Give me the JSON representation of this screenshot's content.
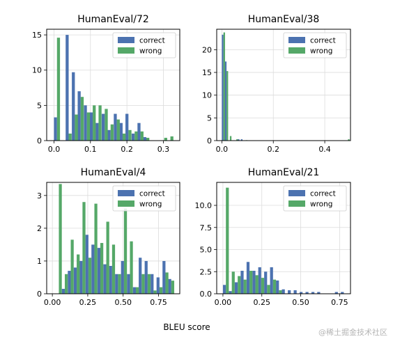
{
  "figure": {
    "xlabel": "BLEU score",
    "watermark": "@稀土掘金技术社区"
  },
  "chart_data": [
    {
      "type": "bar",
      "title": "HumanEval/72",
      "grid": true,
      "legend_position": "top-right",
      "xlim": [
        -0.02,
        0.345
      ],
      "ylim": [
        0,
        15.8
      ],
      "xticks": [
        0.0,
        0.1,
        0.2,
        0.3
      ],
      "xtick_labels": [
        "0.0",
        "0.1",
        "0.2",
        "0.3"
      ],
      "yticks": [
        0,
        5,
        10,
        15
      ],
      "ytick_labels": [
        "0",
        "5",
        "10",
        "15"
      ],
      "bin_width": 0.0165,
      "series": [
        {
          "name": "correct",
          "color": "#4c72b0",
          "x": [
            0.0,
            0.016,
            0.032,
            0.049,
            0.065,
            0.082,
            0.098,
            0.114,
            0.131,
            0.147,
            0.164,
            0.18,
            0.196,
            0.213,
            0.229,
            0.245,
            0.262,
            0.278,
            0.294,
            0.311,
            0.327
          ],
          "values": [
            3.3,
            0,
            15.0,
            9.7,
            7.0,
            5.0,
            4.0,
            2.5,
            3.8,
            1.5,
            3.8,
            2.5,
            3.8,
            1.0,
            2.5,
            0.5,
            0,
            0,
            0,
            0,
            0
          ]
        },
        {
          "name": "wrong",
          "color": "#55a868",
          "x": [
            0.0,
            0.016,
            0.032,
            0.049,
            0.065,
            0.082,
            0.098,
            0.114,
            0.131,
            0.147,
            0.164,
            0.18,
            0.196,
            0.213,
            0.229,
            0.245,
            0.262,
            0.278,
            0.294,
            0.311,
            0.327
          ],
          "values": [
            14.6,
            0,
            1.0,
            3.7,
            6.2,
            4.0,
            5.0,
            5.0,
            4.5,
            2.3,
            3.0,
            1.0,
            1.5,
            1.3,
            1.3,
            0.4,
            0,
            0,
            0.4,
            0.6,
            0
          ]
        }
      ]
    },
    {
      "type": "bar",
      "title": "HumanEval/38",
      "grid": true,
      "legend_position": "top-right",
      "xlim": [
        -0.02,
        0.5
      ],
      "ylim": [
        0,
        24.5
      ],
      "xticks": [
        0.0,
        0.2,
        0.4
      ],
      "xtick_labels": [
        "0.0",
        "0.2",
        "0.4"
      ],
      "yticks": [
        0,
        5,
        10,
        15,
        20
      ],
      "ytick_labels": [
        "0",
        "5",
        "10",
        "15",
        "20"
      ],
      "bin_width": 0.0124,
      "series": [
        {
          "name": "correct",
          "color": "#4c72b0",
          "x": [
            0.0,
            0.012,
            0.025,
            0.037,
            0.05,
            0.062,
            0.074,
            0.087,
            0.099,
            0.112,
            0.124,
            0.136,
            0.149,
            0.161,
            0.174,
            0.186,
            0.198,
            0.211,
            0.223,
            0.236,
            0.248,
            0.26,
            0.273,
            0.285,
            0.298,
            0.31,
            0.322,
            0.335,
            0.347,
            0.36,
            0.372,
            0.384,
            0.397,
            0.409,
            0.422,
            0.434,
            0.446,
            0.459,
            0.471,
            0.484
          ],
          "values": [
            23.3,
            17.4,
            0,
            0,
            0,
            0.3,
            0.3,
            0,
            0,
            0,
            0,
            0,
            0,
            0,
            0,
            0,
            0,
            0,
            0,
            0,
            0,
            0,
            0,
            0,
            0,
            0,
            0,
            0,
            0,
            0,
            0,
            0,
            0,
            0,
            0,
            0,
            0,
            0,
            0,
            0
          ]
        },
        {
          "name": "wrong",
          "color": "#55a868",
          "x": [
            0.0,
            0.012,
            0.025,
            0.037,
            0.05,
            0.062,
            0.074,
            0.087,
            0.099,
            0.112,
            0.124,
            0.136,
            0.149,
            0.161,
            0.174,
            0.186,
            0.198,
            0.211,
            0.223,
            0.236,
            0.248,
            0.26,
            0.273,
            0.285,
            0.298,
            0.31,
            0.322,
            0.335,
            0.347,
            0.36,
            0.372,
            0.384,
            0.397,
            0.409,
            0.422,
            0.434,
            0.446,
            0.459,
            0.471,
            0.484
          ],
          "values": [
            23.8,
            15.3,
            1.0,
            0,
            0.3,
            0,
            0,
            0.1,
            0,
            0,
            0,
            0,
            0,
            0,
            0,
            0,
            0,
            0,
            0,
            0,
            0,
            0,
            0,
            0,
            0,
            0,
            0,
            0,
            0,
            0,
            0,
            0,
            0,
            0,
            0,
            0,
            0,
            0,
            0,
            0.3
          ]
        }
      ]
    },
    {
      "type": "bar",
      "title": "HumanEval/4",
      "grid": true,
      "legend_position": "top-right",
      "xlim": [
        -0.04,
        0.9
      ],
      "ylim": [
        0,
        3.4
      ],
      "xticks": [
        0.0,
        0.25,
        0.5,
        0.75
      ],
      "xtick_labels": [
        "0.00",
        "0.25",
        "0.50",
        "0.75"
      ],
      "yticks": [
        0,
        1,
        2,
        3
      ],
      "ytick_labels": [
        "0",
        "1",
        "2",
        "3"
      ],
      "bin_width": 0.0418,
      "series": [
        {
          "name": "correct",
          "color": "#4c72b0",
          "x": [
            0.025,
            0.067,
            0.109,
            0.151,
            0.192,
            0.234,
            0.276,
            0.318,
            0.36,
            0.401,
            0.443,
            0.485,
            0.527,
            0.569,
            0.61,
            0.652,
            0.694,
            0.736,
            0.778,
            0.819
          ],
          "values": [
            0,
            0.15,
            0.7,
            0.8,
            1.0,
            1.8,
            1.5,
            1.4,
            0.9,
            0.85,
            0.6,
            1.0,
            0.6,
            0.2,
            1.1,
            1.0,
            0.6,
            0.5,
            1.0,
            0.45
          ]
        },
        {
          "name": "wrong",
          "color": "#55a868",
          "x": [
            0.025,
            0.067,
            0.109,
            0.151,
            0.192,
            0.234,
            0.276,
            0.318,
            0.36,
            0.401,
            0.443,
            0.485,
            0.527,
            0.569,
            0.61,
            0.652,
            0.694,
            0.736,
            0.778,
            0.819
          ],
          "values": [
            3.35,
            0.6,
            1.65,
            1.2,
            2.8,
            1.1,
            2.75,
            1.55,
            2.2,
            1.5,
            0.6,
            2.6,
            1.6,
            0.2,
            0.6,
            0.6,
            0.1,
            0.2,
            0.65,
            0.4
          ]
        }
      ]
    },
    {
      "type": "bar",
      "title": "HumanEval/21",
      "grid": true,
      "legend_position": "top-right",
      "xlim": [
        -0.04,
        0.82
      ],
      "ylim": [
        0,
        12.6
      ],
      "xticks": [
        0.0,
        0.25,
        0.5,
        0.75
      ],
      "xtick_labels": [
        "0.00",
        "0.25",
        "0.50",
        "0.75"
      ],
      "yticks": [
        0.0,
        2.5,
        5.0,
        7.5,
        10.0
      ],
      "ytick_labels": [
        "0.0",
        "2.5",
        "5.0",
        "7.5",
        "10.0"
      ],
      "bin_width": 0.0379,
      "series": [
        {
          "name": "correct",
          "color": "#4c72b0",
          "x": [
            0.0,
            0.038,
            0.076,
            0.114,
            0.152,
            0.19,
            0.227,
            0.265,
            0.303,
            0.341,
            0.379,
            0.417,
            0.455,
            0.493,
            0.531,
            0.569,
            0.606,
            0.644,
            0.682,
            0.72,
            0.758
          ],
          "values": [
            1.0,
            0.3,
            1.3,
            2.6,
            3.6,
            2.6,
            3.0,
            2.5,
            3.0,
            1.5,
            0.5,
            0.4,
            0.4,
            0.2,
            0.2,
            0.2,
            0.2,
            0,
            0,
            0.2,
            0.2
          ]
        },
        {
          "name": "wrong",
          "color": "#55a868",
          "x": [
            0.0,
            0.038,
            0.076,
            0.114,
            0.152,
            0.19,
            0.227,
            0.265,
            0.303,
            0.341,
            0.379,
            0.417,
            0.455,
            0.493,
            0.531,
            0.569,
            0.606,
            0.644,
            0.682,
            0.72,
            0.758
          ],
          "values": [
            12.0,
            2.5,
            2.0,
            1.6,
            2.6,
            2.1,
            1.8,
            1.0,
            1.6,
            0.4,
            0,
            0,
            0,
            0,
            0,
            0,
            0,
            0,
            0,
            0,
            0
          ]
        }
      ]
    }
  ]
}
